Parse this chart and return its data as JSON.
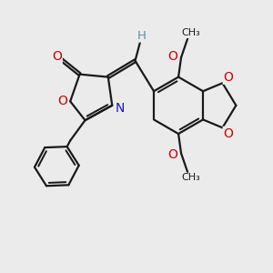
{
  "background_color": "#ebebeb",
  "bond_color": "#1a1a1a",
  "oxygen_color": "#cc0000",
  "nitrogen_color": "#1414cc",
  "hydrogen_color": "#5f9090",
  "figsize": [
    3.0,
    3.0
  ],
  "dpi": 100,
  "xlim": [
    0,
    10
  ],
  "ylim": [
    0,
    10
  ],
  "lw": 1.6,
  "doff": 0.1
}
